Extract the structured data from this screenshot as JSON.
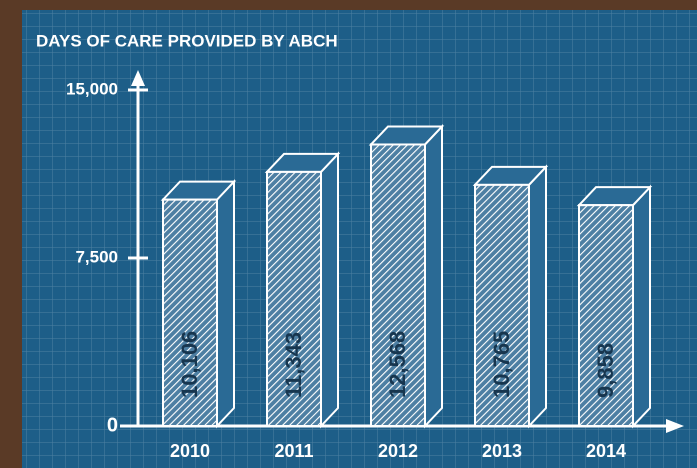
{
  "chart_data": {
    "type": "bar",
    "title": "DAYS OF CARE PROVIDED BY ABCH",
    "categories": [
      "2010",
      "2011",
      "2012",
      "2013",
      "2014"
    ],
    "values": [
      10106,
      11343,
      12568,
      10765,
      9858
    ],
    "value_labels": [
      "10,106",
      "11,343",
      "12,568",
      "10,765",
      "9,858"
    ],
    "color": "#ffffff",
    "ylim": [
      0,
      15000
    ],
    "yticks": [
      0,
      {
        "value": 7500,
        "label": "7,500"
      },
      {
        "value": 15000,
        "label": "15,000"
      }
    ],
    "grid": false
  }
}
